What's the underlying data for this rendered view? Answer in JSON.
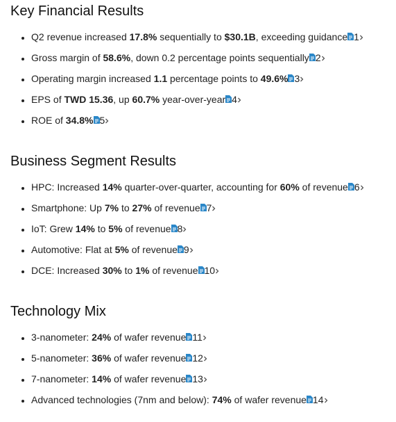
{
  "sections": [
    {
      "title": "Key Financial Results",
      "items": [
        {
          "parts": [
            "Q2 revenue increased ",
            "17.8%",
            " sequentially to ",
            "$30.1B",
            ", exceeding guidance"
          ],
          "ref": 1
        },
        {
          "parts": [
            "Gross margin of ",
            "58.6%",
            ", down 0.2 percentage points sequentially"
          ],
          "ref": 2
        },
        {
          "parts": [
            "Operating margin increased ",
            "1.1",
            " percentage points to ",
            "49.6%"
          ],
          "ref": 3
        },
        {
          "parts": [
            "EPS of ",
            "TWD 15.36",
            ", up ",
            "60.7%",
            " year-over-year"
          ],
          "ref": 4
        },
        {
          "parts": [
            "ROE of ",
            "34.8%"
          ],
          "ref": 5
        }
      ]
    },
    {
      "title": "Business Segment Results",
      "items": [
        {
          "parts": [
            "HPC: Increased ",
            "14%",
            " quarter-over-quarter, accounting for ",
            "60%",
            " of revenue"
          ],
          "ref": 6
        },
        {
          "parts": [
            "Smartphone: Up ",
            "7%",
            " to ",
            "27%",
            " of revenue"
          ],
          "ref": 7
        },
        {
          "parts": [
            "IoT: Grew ",
            "14%",
            " to ",
            "5%",
            " of revenue"
          ],
          "ref": 8
        },
        {
          "parts": [
            "Automotive: Flat at ",
            "5%",
            " of revenue"
          ],
          "ref": 9
        },
        {
          "parts": [
            "DCE: Increased ",
            "30%",
            " to ",
            "1%",
            " of revenue"
          ],
          "ref": 10
        }
      ]
    },
    {
      "title": "Technology Mix",
      "items": [
        {
          "parts": [
            "3-nanometer: ",
            "24%",
            " of wafer revenue"
          ],
          "ref": 11
        },
        {
          "parts": [
            "5-nanometer: ",
            "36%",
            " of wafer revenue"
          ],
          "ref": 12
        },
        {
          "parts": [
            "7-nanometer: ",
            "14%",
            " of wafer revenue"
          ],
          "ref": 13
        },
        {
          "parts": [
            "Advanced technologies (7nm and below): ",
            "74%",
            " of wafer revenue"
          ],
          "ref": 14
        }
      ]
    }
  ]
}
